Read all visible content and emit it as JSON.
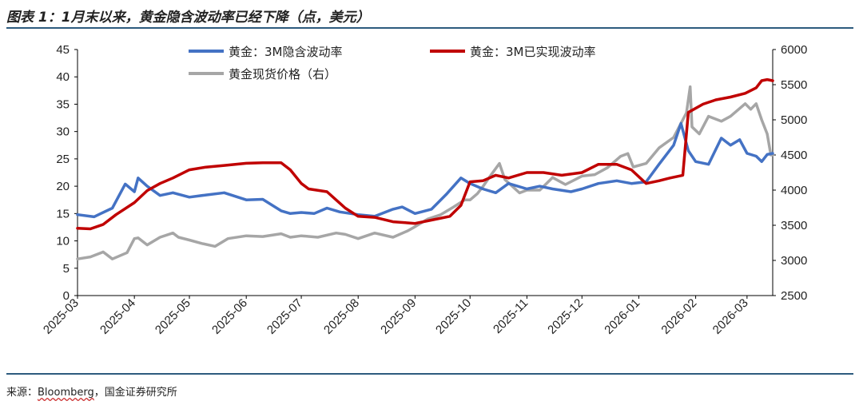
{
  "figure": {
    "title": "图表 1：1月末以来，黄金隐含波动率已经下降（点，美元）",
    "source_label": "来源：",
    "source_name": "Bloomberg",
    "source_rest": "，国金证券研究所"
  },
  "colors": {
    "implied_vol": "#4472c4",
    "realized_vol": "#c00000",
    "spot_price": "#a6a6a6",
    "rule": "#2d5b7e"
  },
  "chart_data": {
    "type": "line",
    "x_ticks": [
      "2025-03",
      "2025-04",
      "2025-05",
      "2025-06",
      "2025-07",
      "2025-08",
      "2025-09",
      "2025-10",
      "2025-11",
      "2025-12",
      "2026-01",
      "2026-02",
      "2026-03"
    ],
    "y_left": {
      "min": 0,
      "max": 45,
      "ticks": [
        0,
        5,
        10,
        15,
        20,
        25,
        30,
        35,
        40,
        45
      ]
    },
    "y_right": {
      "min": 2500,
      "max": 6000,
      "ticks": [
        2500,
        3000,
        3500,
        4000,
        4500,
        5000,
        5500,
        6000
      ]
    },
    "grid": false,
    "legend_position": "top",
    "series": [
      {
        "name": "黄金：3M隐含波动率",
        "axis": "left",
        "color": "#4472c4",
        "points": [
          [
            "2025-03-01",
            14.8
          ],
          [
            "2025-03-10",
            14.4
          ],
          [
            "2025-03-20",
            16.0
          ],
          [
            "2025-03-27",
            20.4
          ],
          [
            "2025-04-01",
            19.0
          ],
          [
            "2025-04-03",
            21.5
          ],
          [
            "2025-04-08",
            20.0
          ],
          [
            "2025-04-15",
            18.3
          ],
          [
            "2025-04-22",
            18.8
          ],
          [
            "2025-05-01",
            18.0
          ],
          [
            "2025-05-10",
            18.4
          ],
          [
            "2025-05-20",
            18.8
          ],
          [
            "2025-06-01",
            17.5
          ],
          [
            "2025-06-10",
            17.6
          ],
          [
            "2025-06-20",
            15.5
          ],
          [
            "2025-06-25",
            15.0
          ],
          [
            "2025-07-01",
            15.2
          ],
          [
            "2025-07-08",
            15.0
          ],
          [
            "2025-07-15",
            16.0
          ],
          [
            "2025-07-22",
            15.3
          ],
          [
            "2025-08-01",
            14.8
          ],
          [
            "2025-08-10",
            14.5
          ],
          [
            "2025-08-20",
            15.8
          ],
          [
            "2025-08-25",
            16.2
          ],
          [
            "2025-09-01",
            15.0
          ],
          [
            "2025-09-10",
            15.8
          ],
          [
            "2025-09-18",
            18.5
          ],
          [
            "2025-09-26",
            21.5
          ],
          [
            "2025-10-01",
            20.5
          ],
          [
            "2025-10-08",
            19.5
          ],
          [
            "2025-10-15",
            18.8
          ],
          [
            "2025-10-22",
            20.5
          ],
          [
            "2025-11-01",
            19.5
          ],
          [
            "2025-11-08",
            20.0
          ],
          [
            "2025-11-15",
            19.5
          ],
          [
            "2025-11-25",
            19.0
          ],
          [
            "2025-12-01",
            19.5
          ],
          [
            "2025-12-10",
            20.5
          ],
          [
            "2025-12-20",
            21.0
          ],
          [
            "2025-12-28",
            20.5
          ],
          [
            "2026-01-05",
            20.8
          ],
          [
            "2026-01-12",
            24.0
          ],
          [
            "2026-01-20",
            27.5
          ],
          [
            "2026-01-24",
            31.5
          ],
          [
            "2026-01-28",
            26.5
          ],
          [
            "2026-02-01",
            24.5
          ],
          [
            "2026-02-08",
            24.0
          ],
          [
            "2026-02-15",
            28.8
          ],
          [
            "2026-02-20",
            27.5
          ],
          [
            "2026-02-25",
            28.5
          ],
          [
            "2026-03-01",
            26.0
          ],
          [
            "2026-03-06",
            25.5
          ],
          [
            "2026-03-09",
            24.5
          ],
          [
            "2026-03-12",
            25.8
          ],
          [
            "2026-03-15",
            26.0
          ]
        ]
      },
      {
        "name": "黄金：3M已实现波动率",
        "axis": "left",
        "color": "#c00000",
        "points": [
          [
            "2025-03-01",
            12.3
          ],
          [
            "2025-03-08",
            12.2
          ],
          [
            "2025-03-15",
            13.0
          ],
          [
            "2025-03-22",
            14.8
          ],
          [
            "2025-04-01",
            17.0
          ],
          [
            "2025-04-08",
            19.2
          ],
          [
            "2025-04-15",
            20.5
          ],
          [
            "2025-04-22",
            21.5
          ],
          [
            "2025-05-01",
            23.0
          ],
          [
            "2025-05-10",
            23.5
          ],
          [
            "2025-05-20",
            23.8
          ],
          [
            "2025-06-01",
            24.2
          ],
          [
            "2025-06-10",
            24.3
          ],
          [
            "2025-06-20",
            24.3
          ],
          [
            "2025-06-25",
            23.0
          ],
          [
            "2025-07-01",
            20.5
          ],
          [
            "2025-07-05",
            19.5
          ],
          [
            "2025-07-15",
            19.0
          ],
          [
            "2025-07-25",
            16.0
          ],
          [
            "2025-08-01",
            14.5
          ],
          [
            "2025-08-10",
            14.3
          ],
          [
            "2025-08-20",
            13.5
          ],
          [
            "2025-08-28",
            13.3
          ],
          [
            "2025-09-01",
            13.2
          ],
          [
            "2025-09-10",
            13.8
          ],
          [
            "2025-09-20",
            14.5
          ],
          [
            "2025-09-26",
            16.5
          ],
          [
            "2025-10-01",
            20.8
          ],
          [
            "2025-10-08",
            21.0
          ],
          [
            "2025-10-15",
            22.0
          ],
          [
            "2025-10-22",
            21.5
          ],
          [
            "2025-11-01",
            22.5
          ],
          [
            "2025-11-10",
            22.5
          ],
          [
            "2025-11-20",
            22.0
          ],
          [
            "2025-12-01",
            22.5
          ],
          [
            "2025-12-10",
            24.0
          ],
          [
            "2025-12-20",
            24.0
          ],
          [
            "2025-12-28",
            23.0
          ],
          [
            "2026-01-05",
            20.5
          ],
          [
            "2026-01-12",
            21.0
          ],
          [
            "2026-01-18",
            21.5
          ],
          [
            "2026-01-25",
            22.0
          ],
          [
            "2026-01-28",
            33.5
          ],
          [
            "2026-02-05",
            35.0
          ],
          [
            "2026-02-12",
            35.8
          ],
          [
            "2026-02-20",
            36.3
          ],
          [
            "2026-02-28",
            37.0
          ],
          [
            "2026-03-06",
            38.0
          ],
          [
            "2026-03-09",
            39.3
          ],
          [
            "2026-03-12",
            39.5
          ],
          [
            "2026-03-15",
            39.3
          ]
        ]
      },
      {
        "name": "黄金现货价格（右）",
        "axis": "right",
        "color": "#a6a6a6",
        "points": [
          [
            "2025-03-01",
            3020
          ],
          [
            "2025-03-08",
            3050
          ],
          [
            "2025-03-15",
            3120
          ],
          [
            "2025-03-20",
            3020
          ],
          [
            "2025-03-28",
            3110
          ],
          [
            "2025-04-01",
            3310
          ],
          [
            "2025-04-03",
            3320
          ],
          [
            "2025-04-08",
            3220
          ],
          [
            "2025-04-15",
            3330
          ],
          [
            "2025-04-22",
            3390
          ],
          [
            "2025-04-25",
            3330
          ],
          [
            "2025-05-01",
            3290
          ],
          [
            "2025-05-08",
            3240
          ],
          [
            "2025-05-15",
            3200
          ],
          [
            "2025-05-22",
            3310
          ],
          [
            "2025-06-01",
            3350
          ],
          [
            "2025-06-10",
            3340
          ],
          [
            "2025-06-20",
            3380
          ],
          [
            "2025-06-25",
            3330
          ],
          [
            "2025-07-01",
            3350
          ],
          [
            "2025-07-10",
            3330
          ],
          [
            "2025-07-20",
            3390
          ],
          [
            "2025-07-25",
            3370
          ],
          [
            "2025-08-01",
            3310
          ],
          [
            "2025-08-10",
            3390
          ],
          [
            "2025-08-20",
            3330
          ],
          [
            "2025-08-28",
            3420
          ],
          [
            "2025-09-01",
            3480
          ],
          [
            "2025-09-08",
            3590
          ],
          [
            "2025-09-15",
            3650
          ],
          [
            "2025-09-22",
            3760
          ],
          [
            "2025-09-28",
            3860
          ],
          [
            "2025-10-01",
            3860
          ],
          [
            "2025-10-05",
            3950
          ],
          [
            "2025-10-08",
            4050
          ],
          [
            "2025-10-12",
            4200
          ],
          [
            "2025-10-17",
            4380
          ],
          [
            "2025-10-20",
            4150
          ],
          [
            "2025-10-28",
            3960
          ],
          [
            "2025-11-01",
            4000
          ],
          [
            "2025-11-08",
            4000
          ],
          [
            "2025-11-15",
            4180
          ],
          [
            "2025-11-22",
            4080
          ],
          [
            "2025-12-01",
            4200
          ],
          [
            "2025-12-08",
            4220
          ],
          [
            "2025-12-15",
            4320
          ],
          [
            "2025-12-22",
            4480
          ],
          [
            "2025-12-26",
            4520
          ],
          [
            "2025-12-29",
            4330
          ],
          [
            "2026-01-05",
            4380
          ],
          [
            "2026-01-12",
            4600
          ],
          [
            "2026-01-20",
            4750
          ],
          [
            "2026-01-27",
            5100
          ],
          [
            "2026-01-29",
            5470
          ],
          [
            "2026-01-30",
            4900
          ],
          [
            "2026-02-03",
            4800
          ],
          [
            "2026-02-08",
            5050
          ],
          [
            "2026-02-15",
            4980
          ],
          [
            "2026-02-20",
            5050
          ],
          [
            "2026-02-28",
            5230
          ],
          [
            "2026-03-03",
            5150
          ],
          [
            "2026-03-06",
            5230
          ],
          [
            "2026-03-09",
            5000
          ],
          [
            "2026-03-12",
            4800
          ],
          [
            "2026-03-14",
            4500
          ],
          [
            "2026-03-15",
            4500
          ]
        ]
      }
    ]
  }
}
